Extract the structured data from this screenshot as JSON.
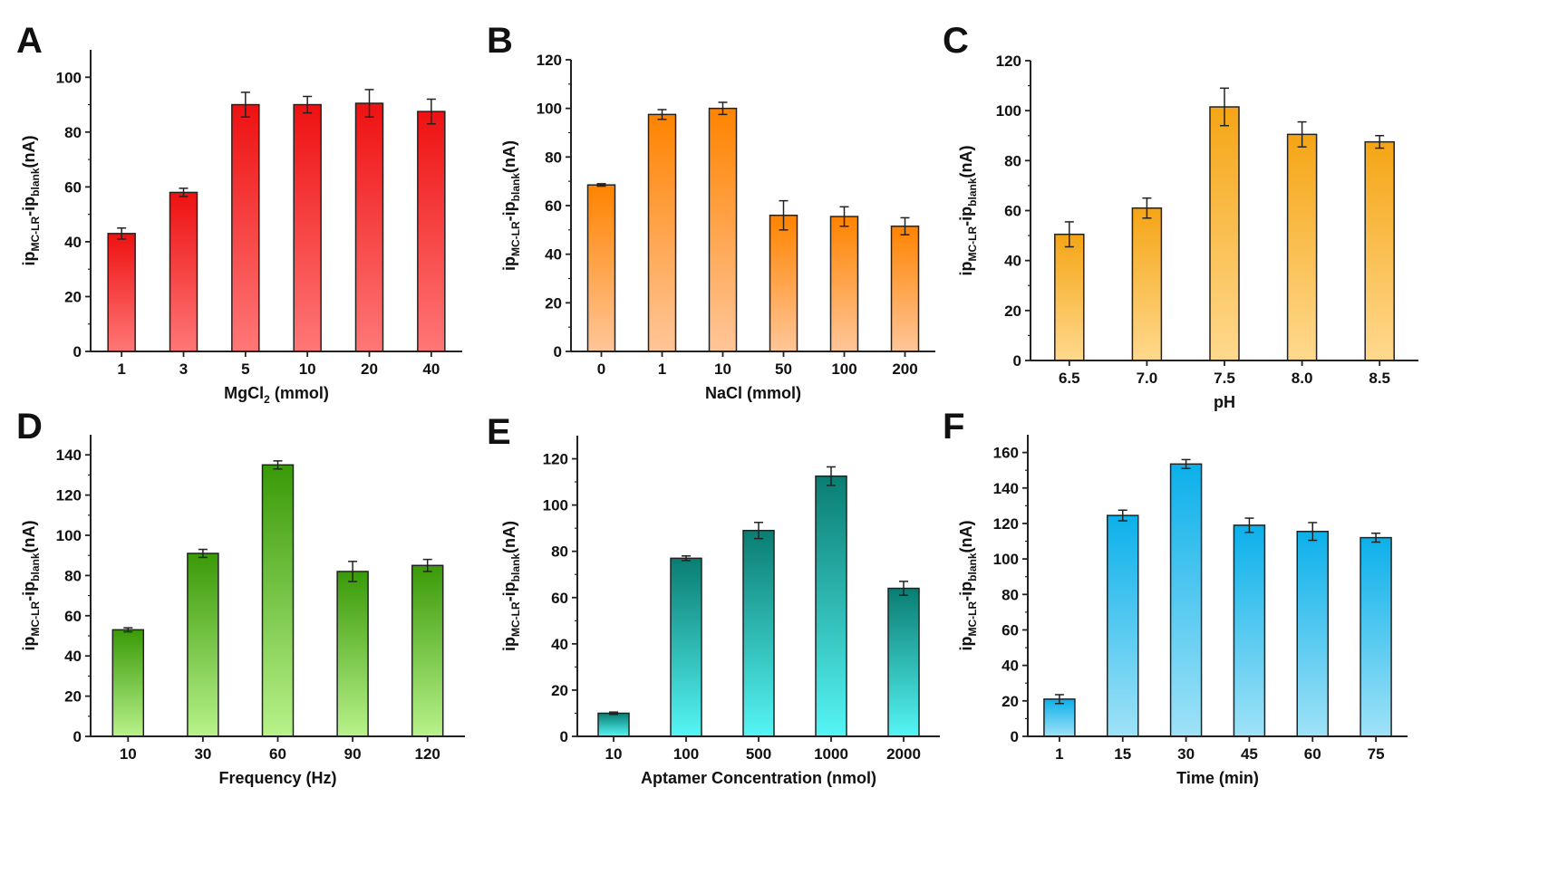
{
  "figure": {
    "background": "#ffffff"
  },
  "ylabel": {
    "main1": "ip",
    "sub1": "MC-LR",
    "mid": "-ip",
    "sub2": "blank",
    "tail": "(nA)"
  },
  "chart_data": [
    {
      "id": "A",
      "type": "bar",
      "panel_label": "A",
      "xlabel": "MgCl",
      "xlabel_sub": "2",
      "xlabel_tail": " (mmol)",
      "categories": [
        "1",
        "3",
        "5",
        "10",
        "20",
        "40"
      ],
      "values": [
        43,
        58,
        90,
        90,
        90.5,
        87.5
      ],
      "errors": [
        2,
        1.5,
        4.5,
        3,
        5,
        4.5
      ],
      "ylim": [
        0,
        110
      ],
      "yticks": [
        0,
        20,
        40,
        60,
        80,
        100
      ],
      "colors": {
        "top": "#ee1111",
        "bottom": "#ff7777"
      },
      "grid": false
    },
    {
      "id": "B",
      "type": "bar",
      "panel_label": "B",
      "xlabel": "NaCl (mmol)",
      "categories": [
        "0",
        "1",
        "10",
        "50",
        "100",
        "200"
      ],
      "values": [
        68.5,
        97.5,
        100,
        56,
        55.5,
        51.5
      ],
      "errors": [
        0.5,
        2,
        2.5,
        6,
        4,
        3.5
      ],
      "ylim": [
        0,
        120
      ],
      "yticks": [
        0,
        20,
        40,
        60,
        80,
        100,
        120
      ],
      "colors": {
        "top": "#ff8300",
        "bottom": "#ffc699"
      },
      "grid": false
    },
    {
      "id": "C",
      "type": "bar",
      "panel_label": "C",
      "xlabel": "pH",
      "categories": [
        "6.5",
        "7.0",
        "7.5",
        "8.0",
        "8.5"
      ],
      "values": [
        50.5,
        61,
        101.5,
        90.5,
        87.5
      ],
      "errors": [
        5,
        4,
        7.5,
        5,
        2.5
      ],
      "ylim": [
        0,
        120
      ],
      "yticks": [
        0,
        20,
        40,
        60,
        80,
        100,
        120
      ],
      "colors": {
        "top": "#f5a515",
        "bottom": "#ffd98e"
      },
      "grid": false
    },
    {
      "id": "D",
      "type": "bar",
      "panel_label": "D",
      "xlabel": "Frequency (Hz)",
      "categories": [
        "10",
        "30",
        "60",
        "90",
        "120"
      ],
      "values": [
        53,
        91,
        135,
        82,
        85
      ],
      "errors": [
        1,
        2,
        2,
        5,
        3
      ],
      "ylim": [
        0,
        150
      ],
      "yticks": [
        0,
        20,
        40,
        60,
        80,
        100,
        120,
        140
      ],
      "colors": {
        "top": "#3a9a08",
        "bottom": "#b8f28b"
      },
      "grid": false
    },
    {
      "id": "E",
      "type": "bar",
      "panel_label": "E",
      "xlabel": "Aptamer Concentration (nmol)",
      "categories": [
        "10",
        "100",
        "500",
        "1000",
        "2000"
      ],
      "values": [
        10,
        77,
        89,
        112.5,
        64
      ],
      "errors": [
        0.5,
        1,
        3.5,
        4,
        3
      ],
      "ylim": [
        0,
        130
      ],
      "yticks": [
        0,
        20,
        40,
        60,
        80,
        100,
        120
      ],
      "colors": {
        "top": "#0a7d72",
        "bottom": "#55f5f5"
      },
      "grid": false
    },
    {
      "id": "F",
      "type": "bar",
      "panel_label": "F",
      "xlabel": "Time (min)",
      "categories": [
        "1",
        "15",
        "30",
        "45",
        "60",
        "75"
      ],
      "values": [
        21,
        124.5,
        153.5,
        119,
        115.5,
        112
      ],
      "errors": [
        2.5,
        3,
        2.5,
        4,
        5,
        2.5
      ],
      "ylim": [
        0,
        170
      ],
      "yticks": [
        0,
        20,
        40,
        60,
        80,
        100,
        120,
        140,
        160
      ],
      "colors": {
        "top": "#0cb0ea",
        "bottom": "#9fe2f7"
      },
      "grid": false
    }
  ]
}
